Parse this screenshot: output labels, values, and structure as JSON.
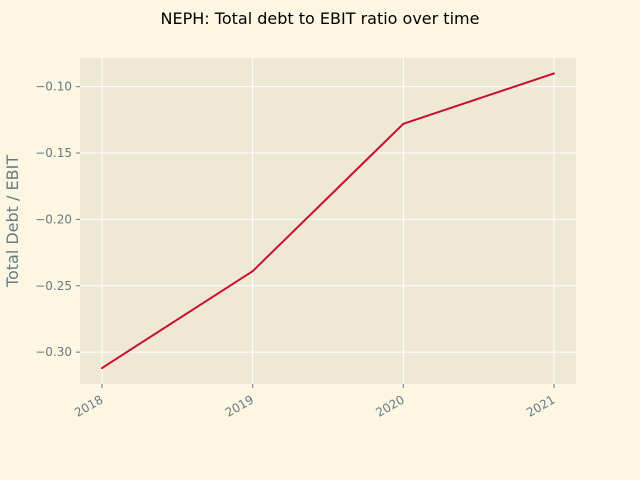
{
  "chart_data": {
    "type": "line",
    "title": "NEPH: Total debt to EBIT ratio over time",
    "xlabel": "",
    "ylabel": "Total Debt / EBIT",
    "x": [
      "2018",
      "2019",
      "2020",
      "2021"
    ],
    "series": [
      {
        "values": [
          -0.312,
          -0.239,
          -0.128,
          -0.09
        ],
        "color": "#c8102e"
      }
    ],
    "yticks": [
      -0.3,
      -0.25,
      -0.2,
      -0.15,
      -0.1
    ],
    "ytick_labels": [
      "−0.30",
      "−0.25",
      "−0.20",
      "−0.15",
      "−0.10"
    ],
    "ylim": [
      -0.324,
      -0.0784
    ],
    "grid": true,
    "background": "#fdf6e3",
    "plot_background": "#eee8d5"
  }
}
